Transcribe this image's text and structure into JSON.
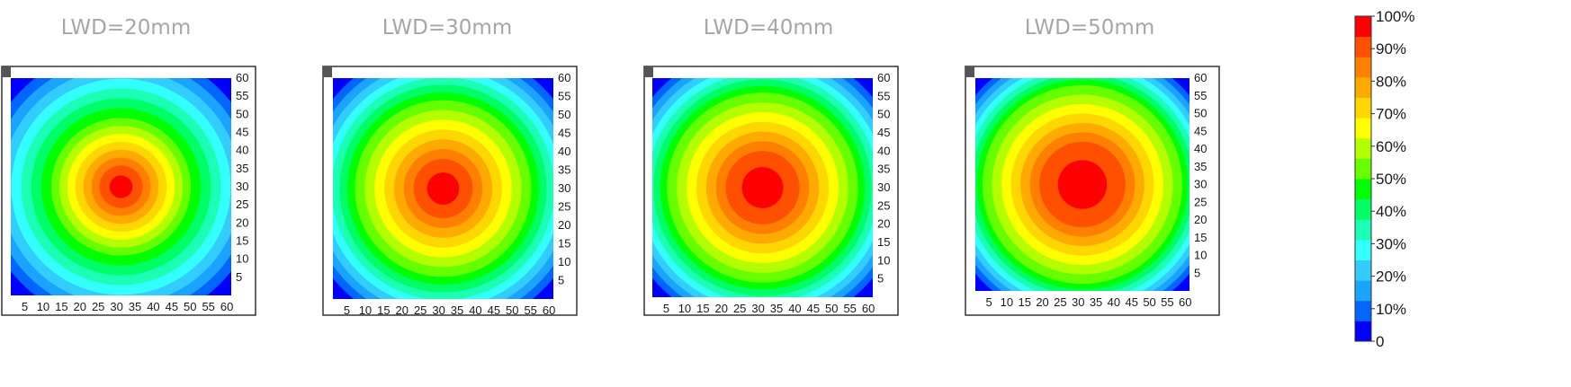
{
  "chart_data": [
    {
      "type": "heatmap",
      "title": "LWD=20mm",
      "xlim": [
        0,
        60
      ],
      "ylim": [
        0,
        60
      ],
      "x_ticks": [
        "5",
        "10",
        "15",
        "20",
        "25",
        "30",
        "35",
        "40",
        "45",
        "50",
        "55",
        "60"
      ],
      "y_ticks": [
        "60",
        "55",
        "50",
        "45",
        "40",
        "35",
        "30",
        "25",
        "20",
        "15",
        "10",
        "5"
      ],
      "peak_center": [
        30,
        30
      ],
      "peak_value_percent": 100,
      "radius_at_90_percent": 5,
      "radius_at_50_percent": 19,
      "corner_value_percent": 0
    },
    {
      "type": "heatmap",
      "title": "LWD=30mm",
      "xlim": [
        0,
        60
      ],
      "ylim": [
        0,
        60
      ],
      "x_ticks": [
        "5",
        "10",
        "15",
        "20",
        "25",
        "30",
        "35",
        "40",
        "45",
        "50",
        "55",
        "60"
      ],
      "y_ticks": [
        "60",
        "55",
        "50",
        "45",
        "40",
        "35",
        "30",
        "25",
        "20",
        "15",
        "10",
        "5"
      ],
      "peak_center": [
        30,
        30
      ],
      "peak_value_percent": 100,
      "radius_at_90_percent": 7,
      "radius_at_50_percent": 24,
      "corner_value_percent": 0
    },
    {
      "type": "heatmap",
      "title": "LWD=40mm",
      "xlim": [
        0,
        60
      ],
      "ylim": [
        0,
        60
      ],
      "x_ticks": [
        "5",
        "10",
        "15",
        "20",
        "25",
        "30",
        "35",
        "40",
        "45",
        "50",
        "55",
        "60"
      ],
      "y_ticks": [
        "60",
        "55",
        "50",
        "45",
        "40",
        "35",
        "30",
        "25",
        "20",
        "15",
        "10",
        "5"
      ],
      "peak_center": [
        30,
        30
      ],
      "peak_value_percent": 100,
      "radius_at_90_percent": 9,
      "radius_at_50_percent": 26,
      "corner_value_percent": 0
    },
    {
      "type": "heatmap",
      "title": "LWD=50mm",
      "xlim": [
        0,
        60
      ],
      "ylim": [
        0,
        60
      ],
      "x_ticks": [
        "5",
        "10",
        "15",
        "20",
        "25",
        "30",
        "35",
        "40",
        "45",
        "50",
        "55",
        "60"
      ],
      "y_ticks": [
        "60",
        "55",
        "50",
        "45",
        "40",
        "35",
        "30",
        "25",
        "20",
        "15",
        "10",
        "5"
      ],
      "peak_center": [
        30,
        30
      ],
      "peak_value_percent": 100,
      "radius_at_90_percent": 11,
      "radius_at_50_percent": 28,
      "corner_value_percent": 0
    }
  ],
  "colorbar": {
    "tick_labels": [
      "100%",
      "90%",
      "80%",
      "70%",
      "60%",
      "50%",
      "40%",
      "30%",
      "20%",
      "10%",
      "0"
    ],
    "levels": [
      "#0000ff",
      "#0066ff",
      "#1aa3ff",
      "#33ccff",
      "#33ffff",
      "#1affb3",
      "#00ff66",
      "#00ff00",
      "#66ff00",
      "#b3ff00",
      "#ffff00",
      "#ffd700",
      "#ffaa00",
      "#ff8000",
      "#ff5000",
      "#ff0000"
    ]
  }
}
